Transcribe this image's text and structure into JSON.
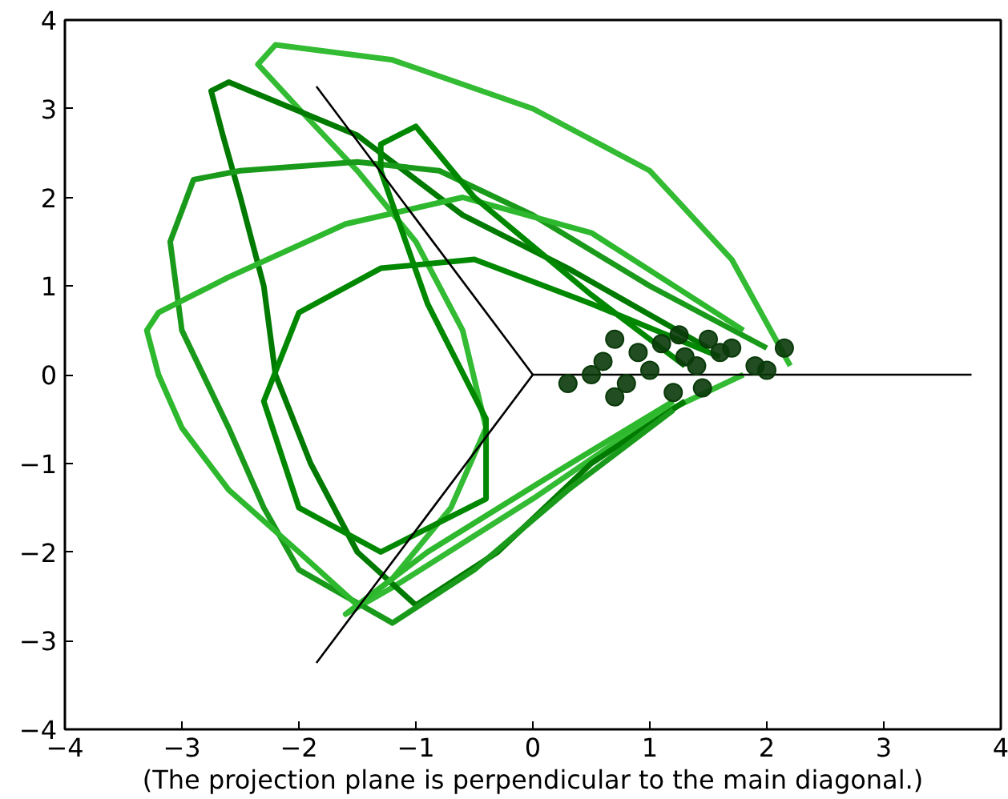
{
  "chart_data": {
    "type": "line",
    "xlabel": "(The projection plane is perpendicular to the main diagonal.)",
    "xlim": [
      -4,
      4
    ],
    "ylim": [
      -4,
      4
    ],
    "xticks": [
      -4,
      -3,
      -2,
      -1,
      0,
      1,
      2,
      3,
      4
    ],
    "yticks": [
      -4,
      -3,
      -2,
      -1,
      0,
      1,
      2,
      3,
      4
    ],
    "grid": false,
    "marker": "none",
    "line_style": "solid",
    "series": [
      {
        "color": "#33bb33",
        "x": [
          2.2,
          1.7,
          1.0,
          0,
          -1.2,
          -2.2,
          -2.35,
          -2.0,
          -1.5,
          -1.0,
          -0.6,
          -0.4,
          -0.7,
          -1.2,
          -1.6,
          -1.2,
          0,
          1.0,
          1.8
        ],
        "values": [
          0.1,
          1.3,
          2.3,
          3.0,
          3.55,
          3.72,
          3.5,
          3.0,
          2.3,
          1.5,
          0.5,
          -0.6,
          -1.5,
          -2.3,
          -2.7,
          -2.4,
          -1.4,
          -0.5,
          0.0
        ]
      },
      {
        "color": "#007a00",
        "x": [
          1.5,
          0.3,
          -0.6,
          -1.5,
          -2.6,
          -2.75,
          -2.65,
          -2.5,
          -2.3,
          -2.2,
          -1.9,
          -1.5,
          -1.0,
          -0.3,
          0.5,
          1.3
        ],
        "values": [
          0.3,
          1.2,
          1.8,
          2.7,
          3.3,
          3.2,
          2.7,
          2.0,
          1.0,
          0,
          -1.0,
          -2.0,
          -2.6,
          -2.0,
          -1.0,
          -0.3
        ]
      },
      {
        "color": "#1a9a1a",
        "x": [
          2.0,
          1.0,
          0,
          -0.8,
          -1.5,
          -2.5,
          -2.9,
          -3.1,
          -3.0,
          -2.6,
          -2.3,
          -2.0,
          -1.2,
          -0.5,
          0.3,
          1.2
        ],
        "values": [
          0.3,
          1.0,
          1.8,
          2.3,
          2.4,
          2.3,
          2.2,
          1.5,
          0.5,
          -0.6,
          -1.5,
          -2.2,
          -2.8,
          -2.2,
          -1.3,
          -0.4
        ]
      },
      {
        "color": "#2db82d",
        "x": [
          1.8,
          0.5,
          -0.6,
          -1.6,
          -2.6,
          -3.2,
          -3.3,
          -3.2,
          -3.0,
          -2.6,
          -2.0,
          -1.5,
          -0.9,
          0.2,
          1.2
        ],
        "values": [
          0.5,
          1.6,
          2.0,
          1.7,
          1.1,
          0.7,
          0.5,
          0.0,
          -0.6,
          -1.3,
          -2.0,
          -2.6,
          -2.0,
          -1.1,
          -0.3
        ]
      },
      {
        "color": "#008800",
        "x": [
          1.6,
          0.5,
          -0.5,
          -1.3,
          -2.0,
          -2.3,
          -2.0,
          -1.3,
          -0.4,
          -0.4,
          -0.9,
          -1.3,
          -1.3,
          -1.0,
          -0.5,
          0.5,
          1.3
        ],
        "values": [
          0.2,
          0.8,
          1.3,
          1.2,
          0.7,
          -0.3,
          -1.5,
          -2.0,
          -1.4,
          -0.5,
          0.8,
          2.3,
          2.6,
          2.8,
          2.0,
          0.9,
          0.1
        ]
      },
      {
        "color": "#000000",
        "x": [
          0,
          3.75
        ],
        "values": [
          0,
          0
        ]
      },
      {
        "color": "#000000",
        "x": [
          0,
          -1.85
        ],
        "values": [
          0,
          3.25
        ]
      },
      {
        "color": "#000000",
        "x": [
          0,
          -1.85
        ],
        "values": [
          0,
          -3.25
        ]
      },
      {
        "type": "scatter",
        "marker": "circle",
        "color": "#0a3a0a",
        "x": [
          0.6,
          0.9,
          1.1,
          1.3,
          1.5,
          1.7,
          1.9,
          0.8,
          1.0,
          1.2,
          1.4,
          1.6,
          0.5,
          0.3,
          2.0,
          2.15,
          0.7,
          1.25,
          1.45,
          0.7
        ],
        "values": [
          0.15,
          0.25,
          0.35,
          0.2,
          0.4,
          0.3,
          0.1,
          -0.1,
          0.05,
          -0.2,
          0.1,
          0.25,
          0.0,
          -0.1,
          0.05,
          0.3,
          -0.25,
          0.45,
          -0.15,
          0.4
        ]
      }
    ]
  }
}
